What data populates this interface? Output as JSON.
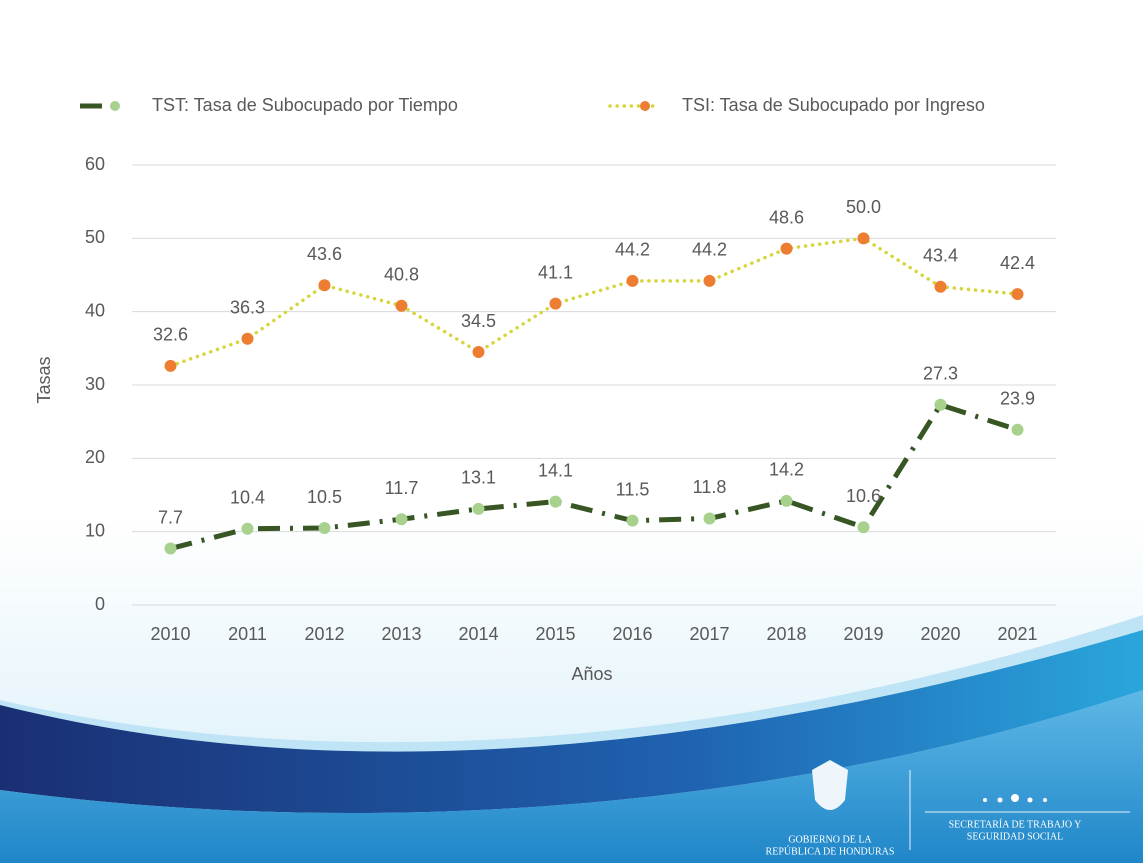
{
  "chart_data": {
    "type": "line",
    "categories": [
      "2010",
      "2011",
      "2012",
      "2013",
      "2014",
      "2015",
      "2016",
      "2017",
      "2018",
      "2019",
      "2020",
      "2021"
    ],
    "series": [
      {
        "name": "TST: Tasa de Subocupado por Tiempo",
        "color": "#375623",
        "marker_color": "#a9d18e",
        "line_style": "dash-dot",
        "values": [
          7.7,
          10.4,
          10.5,
          11.7,
          13.1,
          14.1,
          11.5,
          11.8,
          14.2,
          10.6,
          27.3,
          23.9
        ]
      },
      {
        "name": "TSI: Tasa de Subocupado por Ingreso",
        "color": "#d6d63c",
        "marker_color": "#ed7d31",
        "line_style": "dotted",
        "values": [
          32.6,
          36.3,
          43.6,
          40.8,
          34.5,
          41.1,
          44.2,
          44.2,
          48.6,
          50.0,
          43.4,
          42.4
        ],
        "value_labels": [
          "32.6",
          "36.3",
          "43.6",
          "40.8",
          "34.5",
          "41.1",
          "44.2",
          "44.2",
          "48.6",
          "50.0",
          "43.4",
          "42.4"
        ]
      }
    ],
    "x_label": "Años",
    "y_label": "Tasas",
    "ylim": [
      0,
      60
    ],
    "yticks": [
      0,
      10,
      20,
      30,
      40,
      50,
      60
    ],
    "grid": true,
    "legend": "top"
  },
  "footer": {
    "left_logo": [
      "Gobierno de la",
      "República de Honduras"
    ],
    "right_logo": [
      "Secretaría de Trabajo y",
      "Seguridad Social"
    ]
  }
}
